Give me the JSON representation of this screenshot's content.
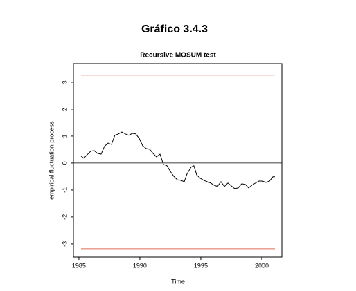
{
  "header": {
    "title": "Gráfico 3.4.3"
  },
  "chart_data": {
    "type": "line",
    "title": "Recursive MOSUM test",
    "x_label": "Time",
    "y_label": "empirical fluctuation process",
    "x": [
      1985.17,
      1985.4,
      1985.68,
      1985.97,
      1986.25,
      1986.53,
      1986.82,
      1987.1,
      1987.39,
      1987.67,
      1987.95,
      1988.24,
      1988.52,
      1988.81,
      1989.09,
      1989.38,
      1989.66,
      1989.94,
      1990.23,
      1990.51,
      1990.8,
      1991.08,
      1991.36,
      1991.65,
      1991.93,
      1992.22,
      1992.5,
      1992.78,
      1993.07,
      1993.35,
      1993.64,
      1993.86,
      1994.2,
      1994.43,
      1994.66,
      1994.94,
      1995.23,
      1995.51,
      1995.8,
      1996.08,
      1996.36,
      1996.65,
      1996.93,
      1997.22,
      1997.5,
      1997.78,
      1998.07,
      1998.35,
      1998.64,
      1998.92,
      1999.2,
      1999.49,
      1999.77,
      2000.06,
      2000.34,
      2000.63,
      2000.91,
      2001.08
    ],
    "series": [
      {
        "color": "#000000",
        "values": [
          0.26,
          0.18,
          0.31,
          0.44,
          0.46,
          0.36,
          0.33,
          0.62,
          0.74,
          0.69,
          1.03,
          1.08,
          1.15,
          1.08,
          1.03,
          1.1,
          1.08,
          0.92,
          0.64,
          0.54,
          0.51,
          0.36,
          0.23,
          0.33,
          -0.05,
          -0.1,
          -0.31,
          -0.49,
          -0.62,
          -0.64,
          -0.69,
          -0.41,
          -0.15,
          -0.1,
          -0.44,
          -0.56,
          -0.64,
          -0.69,
          -0.74,
          -0.82,
          -0.87,
          -0.69,
          -0.87,
          -0.74,
          -0.85,
          -0.95,
          -0.92,
          -0.77,
          -0.79,
          -0.92,
          -0.82,
          -0.74,
          -0.67,
          -0.67,
          -0.72,
          -0.67,
          -0.51,
          -0.51
        ]
      }
    ],
    "boundaries": [
      3.26,
      -3.18
    ],
    "boundary_color": "#e06a55",
    "hline": 0,
    "xlim": [
      1984.55,
      2001.65
    ],
    "ylim": [
      -3.49,
      3.69
    ],
    "xticks": [
      1985,
      1990,
      1995,
      2000
    ],
    "yticks": [
      -3,
      -2,
      -1,
      0,
      1,
      2,
      3
    ]
  }
}
